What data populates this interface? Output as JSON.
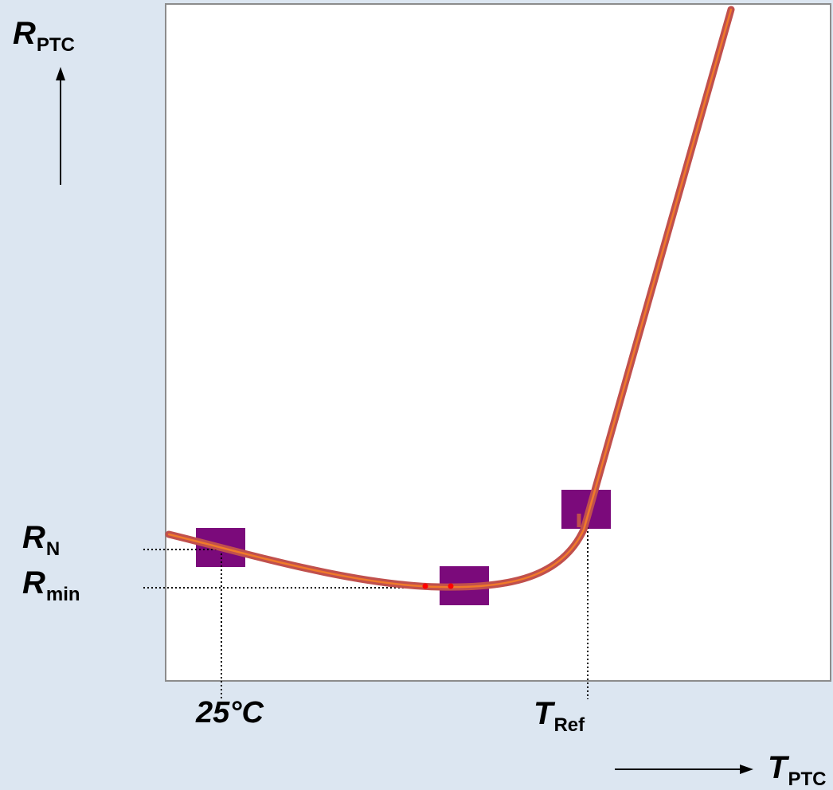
{
  "labels": {
    "y_axis": {
      "main": "R",
      "sub": "PTC"
    },
    "x_axis": {
      "main": "T",
      "sub": "PTC"
    },
    "r_nominal": {
      "main": "R",
      "sub": "N"
    },
    "r_min": {
      "main": "R",
      "sub": "min"
    },
    "t_25c": "25°C",
    "t_ref": {
      "main": "T",
      "sub": "Ref"
    }
  },
  "colors": {
    "background": "#dce6f1",
    "plot_area": "#ffffff",
    "plot_border": "#8c8c8c",
    "curve_outer": "#c0504d",
    "curve_inner": "#f07a2a",
    "markers": "#7b0a7b",
    "guides": "#000000",
    "dots": "#ff0000"
  },
  "markers": [
    "point-25c",
    "point-rmin",
    "point-tref"
  ]
}
